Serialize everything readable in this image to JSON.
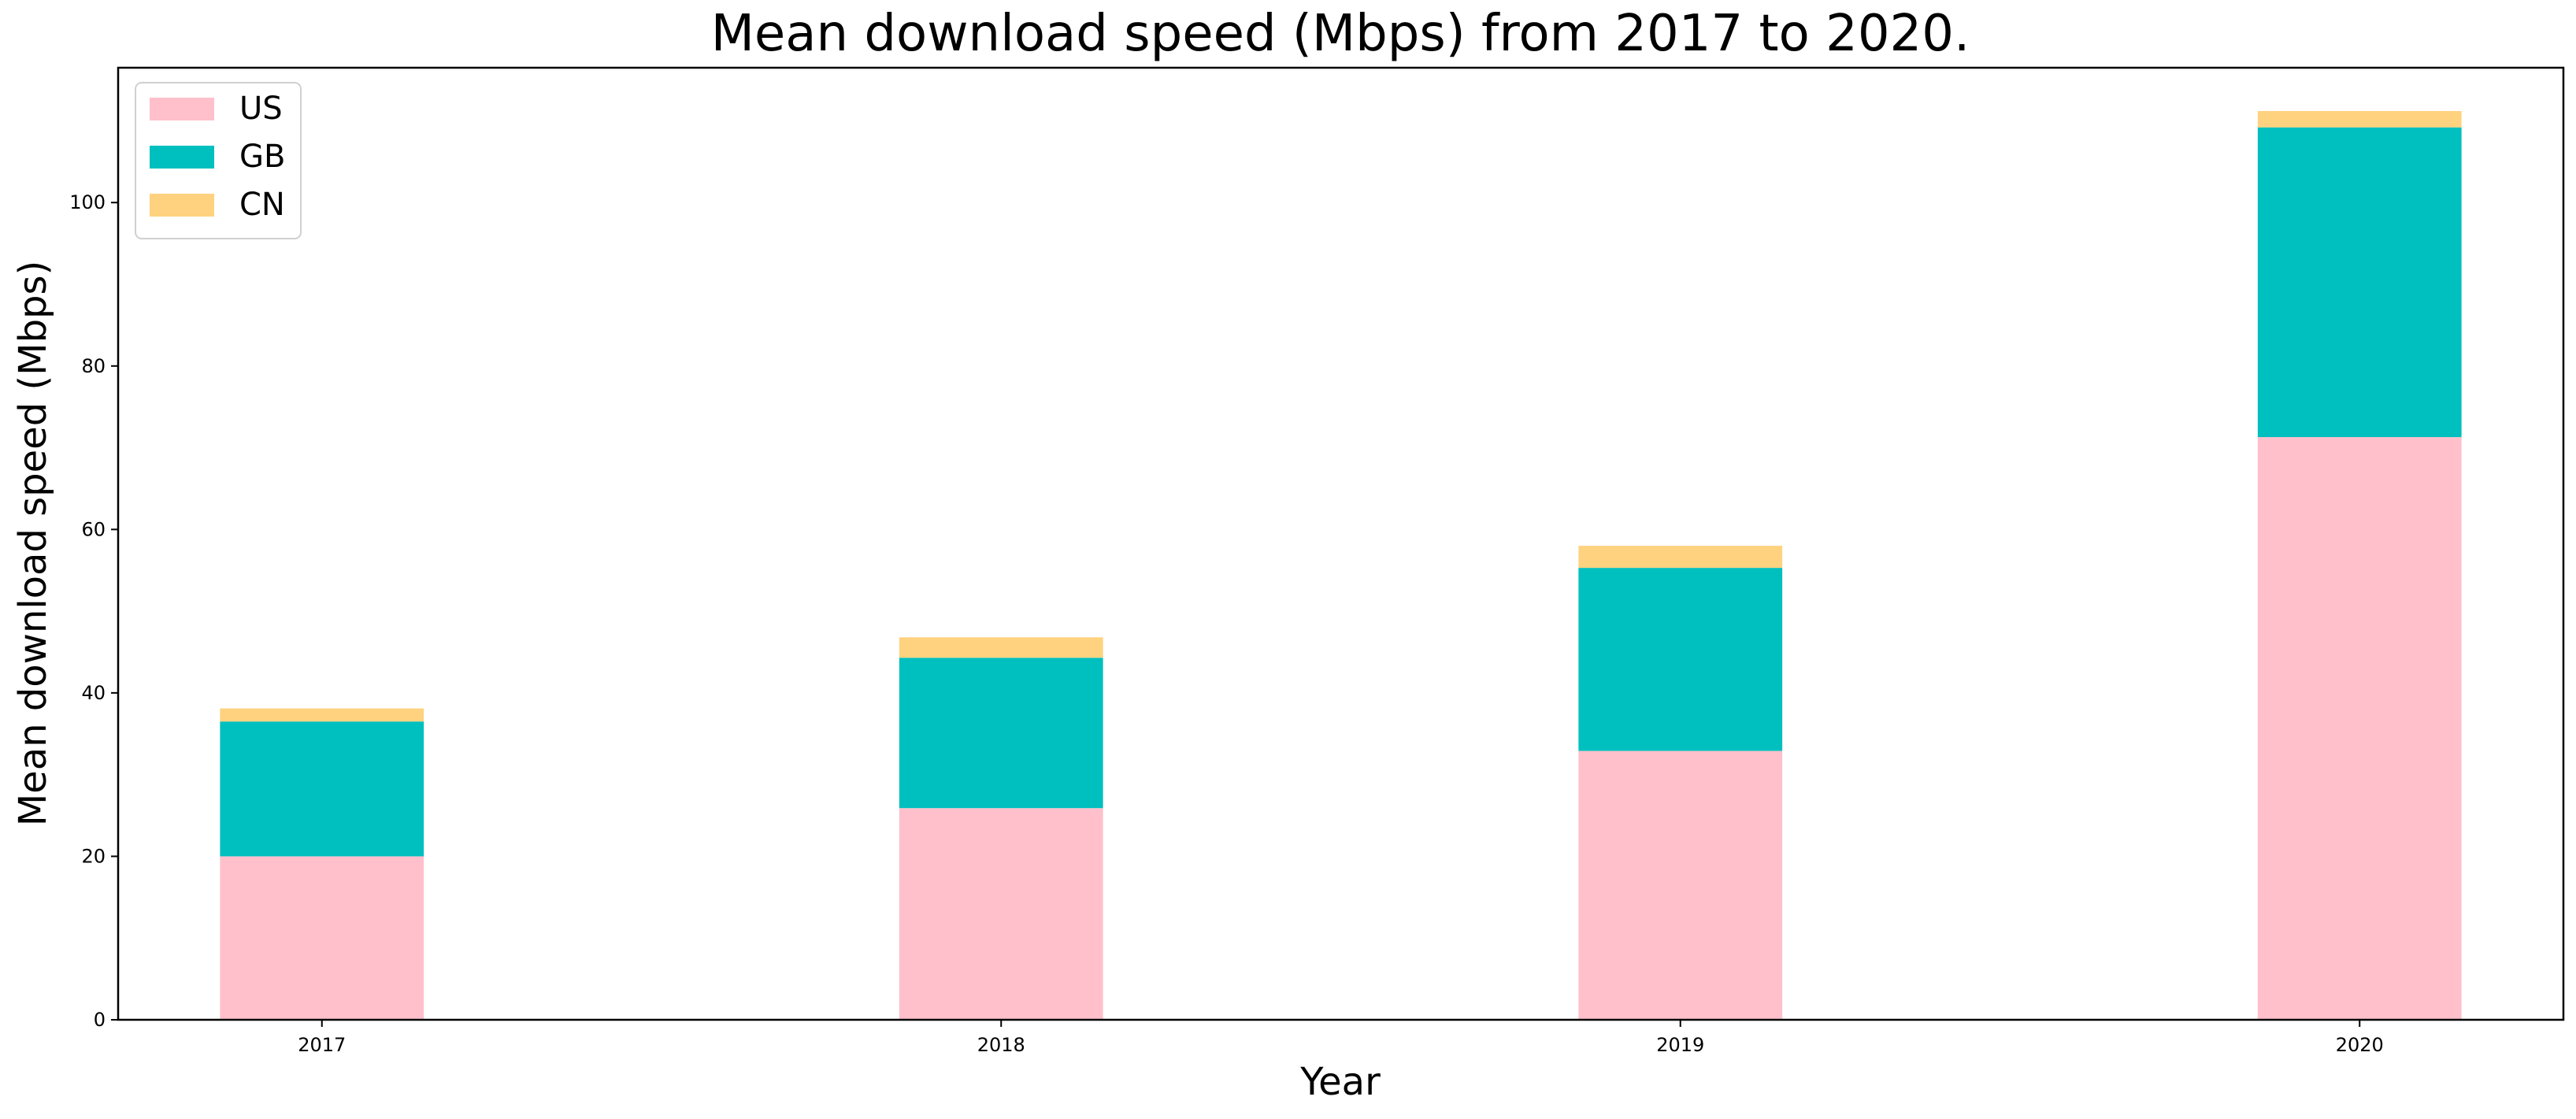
{
  "chart_data": {
    "type": "bar",
    "stacked": true,
    "title": "Mean download speed (Mbps) from 2017 to 2020.",
    "xlabel": "Year",
    "ylabel": "Mean download speed (Mbps)",
    "categories": [
      "2017",
      "2018",
      "2019",
      "2020"
    ],
    "series": [
      {
        "name": "US",
        "color": "#ffc0cb",
        "values": [
          20.0,
          25.9,
          32.9,
          71.3
        ]
      },
      {
        "name": "GB",
        "color": "#00bfbf",
        "values": [
          16.5,
          18.4,
          22.4,
          37.9
        ]
      },
      {
        "name": "CN",
        "color": "#ffd27f",
        "values": [
          1.6,
          2.5,
          2.7,
          2.0
        ]
      }
    ],
    "ylim": [
      0,
      116.5
    ],
    "yticks": [
      0,
      20,
      40,
      60,
      80,
      100
    ],
    "grid": false,
    "legend_position": "top-left"
  }
}
